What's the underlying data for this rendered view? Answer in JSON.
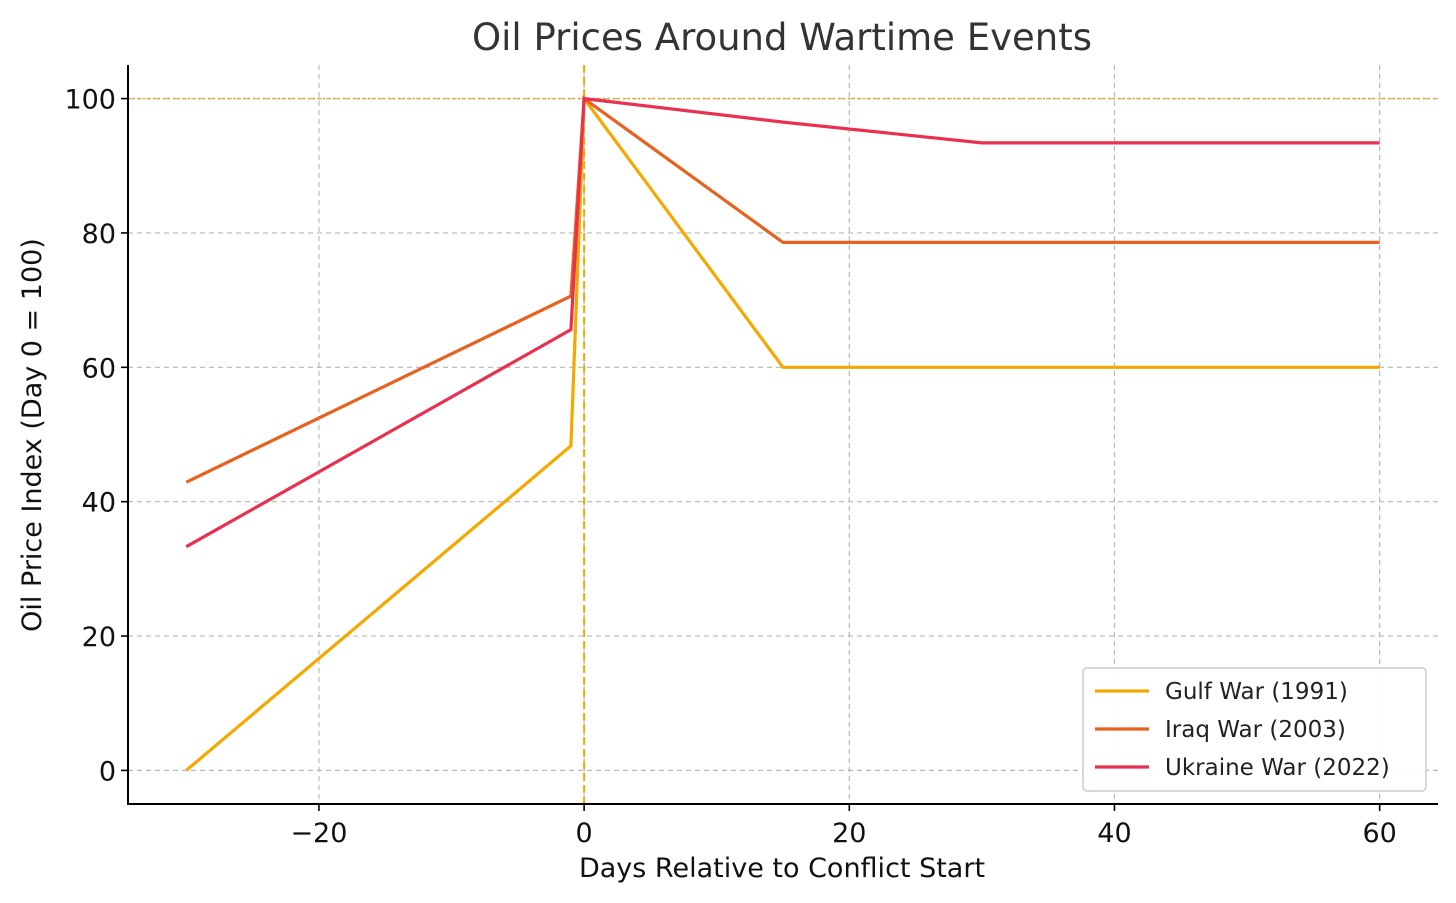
{
  "chart_data": {
    "type": "line",
    "title": "Oil Prices Around Wartime Events",
    "xlabel": "Days Relative to Conflict Start",
    "ylabel": "Oil Price Index (Day 0 = 100)",
    "xlim": [
      -34.4,
      64.4
    ],
    "ylim": [
      -5,
      105
    ],
    "xticks": [
      -20,
      0,
      20,
      40,
      60
    ],
    "xtick_labels": [
      "−20",
      "0",
      "20",
      "40",
      "60"
    ],
    "yticks": [
      0,
      20,
      40,
      60,
      80,
      100
    ],
    "ytick_labels": [
      "0",
      "20",
      "40",
      "60",
      "80",
      "100"
    ],
    "grid": true,
    "legend_position": "bottom-right",
    "reference_lines": {
      "vertical_x": 0,
      "horizontal_y": 100,
      "color": "#f5a800"
    },
    "series": [
      {
        "name": "Gulf War (1991)",
        "color": "#f5a800",
        "x": [
          -30,
          -1,
          0,
          15,
          30,
          60
        ],
        "y": [
          0,
          48.3,
          100,
          60.0,
          60.0,
          60.0
        ]
      },
      {
        "name": "Iraq War (2003)",
        "color": "#e8621f",
        "x": [
          -30,
          -1,
          0,
          15,
          30,
          60
        ],
        "y": [
          42.9,
          70.6,
          100,
          78.6,
          78.6,
          78.6
        ]
      },
      {
        "name": "Ukraine War (2022)",
        "color": "#e8304f",
        "x": [
          -30,
          -1,
          0,
          15,
          30,
          60
        ],
        "y": [
          33.3,
          65.6,
          100,
          96.5,
          93.4,
          93.4
        ]
      }
    ]
  }
}
